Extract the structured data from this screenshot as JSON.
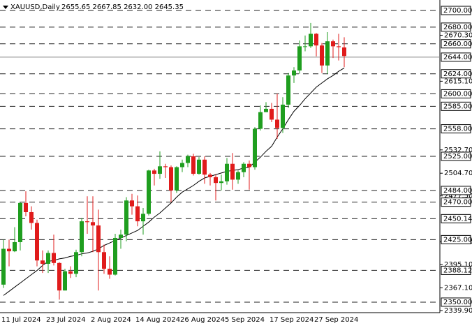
{
  "chart_data": {
    "type": "candlestick",
    "title": "XAUUSD,Daily",
    "subtitle": "2655.65 2667.85 2632.00 2645.35",
    "categories": [
      "11 Jul 2024",
      null,
      null,
      null,
      null,
      null,
      null,
      null,
      "23 Jul 2024",
      null,
      null,
      null,
      null,
      null,
      null,
      null,
      "2 Aug 2024",
      null,
      null,
      null,
      null,
      null,
      null,
      null,
      "14 Aug 2024",
      null,
      null,
      null,
      null,
      null,
      null,
      null,
      "26 Aug 2024",
      null,
      null,
      null,
      null,
      null,
      null,
      null,
      "5 Sep 2024",
      null,
      null,
      null,
      null,
      null,
      null,
      null,
      "17 Sep 2024",
      null,
      null,
      null,
      null,
      null,
      null,
      null,
      "27 Sep 2024",
      null,
      null,
      null,
      null,
      null
    ],
    "open": [
      2371,
      2414,
      2411,
      2422,
      2469,
      2458,
      2445,
      2400,
      2396,
      2409,
      2397,
      2364,
      2387,
      2384,
      2410,
      2447,
      2446,
      2442,
      2410,
      2390,
      2383,
      2427,
      2431,
      2472,
      2465,
      2447,
      2456,
      2508,
      2504,
      2513,
      2512,
      2484,
      2512,
      2517,
      2525,
      2504,
      2521,
      2503,
      2500,
      2493,
      2495,
      2516,
      2497,
      2506,
      2516,
      2512,
      2558,
      2578,
      2582,
      2569,
      2559,
      2587,
      2622,
      2628,
      2657,
      2657,
      2672,
      2658,
      2634,
      2663,
      2657,
      2655.65
    ],
    "high": [
      2425,
      2425,
      2440,
      2470,
      2483,
      2465,
      2449,
      2412,
      2412,
      2431,
      2398,
      2390,
      2393,
      2413,
      2451,
      2477,
      2477,
      2461,
      2419,
      2405,
      2432,
      2437,
      2476,
      2480,
      2478,
      2463,
      2509,
      2510,
      2531,
      2516,
      2514,
      2513,
      2521,
      2527,
      2528,
      2524,
      2525,
      2505,
      2503,
      2503,
      2523,
      2529,
      2508,
      2518,
      2520,
      2560,
      2586,
      2590,
      2589,
      2600,
      2596,
      2625,
      2632,
      2664,
      2670,
      2685,
      2673,
      2661,
      2674,
      2665,
      2672,
      2667.85
    ],
    "low": [
      2367,
      2393,
      2410,
      2412,
      2453,
      2437,
      2393,
      2385,
      2385,
      2394,
      2353,
      2364,
      2379,
      2380,
      2405,
      2432,
      2410,
      2364,
      2384,
      2378,
      2382,
      2414,
      2423,
      2455,
      2441,
      2431,
      2454,
      2490,
      2498,
      2499,
      2470,
      2481,
      2506,
      2512,
      2502,
      2503,
      2492,
      2490,
      2472,
      2484,
      2491,
      2485,
      2492,
      2500,
      2485,
      2509,
      2556,
      2578,
      2566,
      2546,
      2553,
      2583,
      2613,
      2624,
      2651,
      2655,
      2645,
      2625,
      2624,
      2643,
      2640,
      2632
    ],
    "close": [
      2414,
      2411,
      2422,
      2469,
      2458,
      2445,
      2400,
      2396,
      2409,
      2397,
      2364,
      2387,
      2384,
      2410,
      2447,
      2446,
      2442,
      2410,
      2390,
      2383,
      2427,
      2431,
      2472,
      2465,
      2447,
      2456,
      2508,
      2504,
      2513,
      2512,
      2484,
      2512,
      2517,
      2525,
      2504,
      2521,
      2503,
      2500,
      2493,
      2495,
      2516,
      2497,
      2506,
      2516,
      2512,
      2558,
      2578,
      2582,
      2569,
      2559,
      2587,
      2622,
      2628,
      2657,
      2657,
      2672,
      2658,
      2634,
      2663,
      2657,
      2656,
      2645.35
    ],
    "up_color": "#1f9e1f",
    "down_color": "#e01b1b",
    "ma": {
      "color": "#000000",
      "values": [
        2358,
        2363,
        2368,
        2373,
        2378,
        2383,
        2388,
        2394,
        2399,
        2400,
        2402,
        2403,
        2405,
        2406,
        2408,
        2409,
        2411,
        2414,
        2418,
        2421,
        2424,
        2427,
        2430,
        2433,
        2436,
        2441,
        2446,
        2452,
        2457,
        2463,
        2469,
        2476,
        2482,
        2486,
        2490,
        2495,
        2499,
        2501,
        2503,
        2505,
        2507,
        2508,
        2509,
        2511,
        2512,
        2518,
        2524,
        2531,
        2537,
        2548,
        2558,
        2569,
        2579,
        2586,
        2594,
        2601,
        2608,
        2613,
        2618,
        2622,
        2627,
        2631
      ]
    },
    "ylim": [
      2339.9,
      2710.9
    ],
    "yticks": [
      {
        "value": 2670.3,
        "label": "2670.30"
      },
      {
        "value": 2615.1,
        "label": "2615.10"
      },
      {
        "value": 2532.7,
        "label": "2532.70"
      },
      {
        "value": 2504.7,
        "label": "2504.70"
      },
      {
        "value": 2477.5,
        "label": "2477.50"
      },
      {
        "value": 2422.3,
        "label": "2422.30"
      },
      {
        "value": 2395.1,
        "label": "2395.10"
      },
      {
        "value": 2367.1,
        "label": "2367.10"
      },
      {
        "value": 2339.9,
        "label": "2339.90"
      }
    ],
    "levels": [
      {
        "value": 2700,
        "label": "2700.00"
      },
      {
        "value": 2680,
        "label": "2680.00"
      },
      {
        "value": 2660,
        "label": "2660.00"
      },
      {
        "value": 2624,
        "label": "2624.00"
      },
      {
        "value": 2600,
        "label": "2600.00"
      },
      {
        "value": 2585,
        "label": "2585.00"
      },
      {
        "value": 2558,
        "label": "2558.00"
      },
      {
        "value": 2525,
        "label": "2525.00"
      },
      {
        "value": 2484,
        "label": "2484.00"
      },
      {
        "value": 2470,
        "label": "2470.00"
      },
      {
        "value": 2450.14,
        "label": "2450.14"
      },
      {
        "value": 2425,
        "label": "2425.00"
      },
      {
        "value": 2388.12,
        "label": "2388.12"
      },
      {
        "value": 2350,
        "label": "2350.00"
      }
    ],
    "price_level": {
      "value": 2644,
      "label": "2644.00"
    }
  }
}
